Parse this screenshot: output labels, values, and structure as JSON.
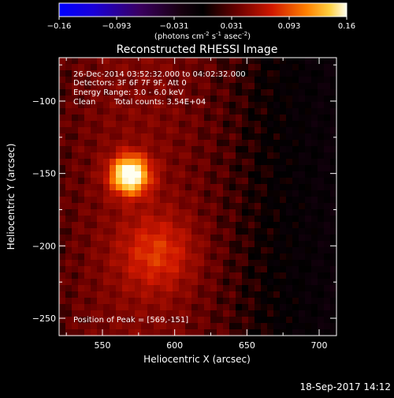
{
  "chart_data": {
    "type": "heatmap",
    "title": "Reconstructed RHESSI Image",
    "xlabel": "Heliocentric X (arcsec)",
    "ylabel": "Heliocentric Y (arcsec)",
    "xlim": [
      520,
      712
    ],
    "ylim": [
      -262,
      -70
    ],
    "x_ticks": [
      550,
      600,
      650,
      700
    ],
    "y_ticks": [
      -100,
      -150,
      -200,
      -250
    ],
    "colorbar": {
      "range": [
        -0.16,
        0.16
      ],
      "ticks": [
        "-0.16",
        "-0.093",
        "-0.031",
        "0.031",
        "0.093",
        "0.16"
      ],
      "unit_text": "(photons cm",
      "unit_sup1": "-2",
      "unit_mid1": " s",
      "unit_sup2": "-1",
      "unit_mid2": " asec",
      "unit_sup3": "-2",
      "unit_end": ")"
    },
    "annotations": {
      "time_range": "26-Dec-2014 03:52:32.000 to 04:02:32.000",
      "detectors": "Detectors: 3F 6F 7F 9F, Att 0",
      "energy_range": "Energy Range: 3.0 - 6.0 keV",
      "method": "Clean",
      "total_counts": "Total counts: 3.54E+04",
      "peak_position": "Position of Peak = [569,-151]"
    },
    "sources": [
      {
        "x": 569,
        "y": -151,
        "peak": 0.16,
        "size_arcsec": 9
      },
      {
        "x": 588,
        "y": -205,
        "peak": 0.045,
        "size_arcsec": 18
      }
    ],
    "footer_timestamp": "18-Sep-2017 14:12"
  }
}
